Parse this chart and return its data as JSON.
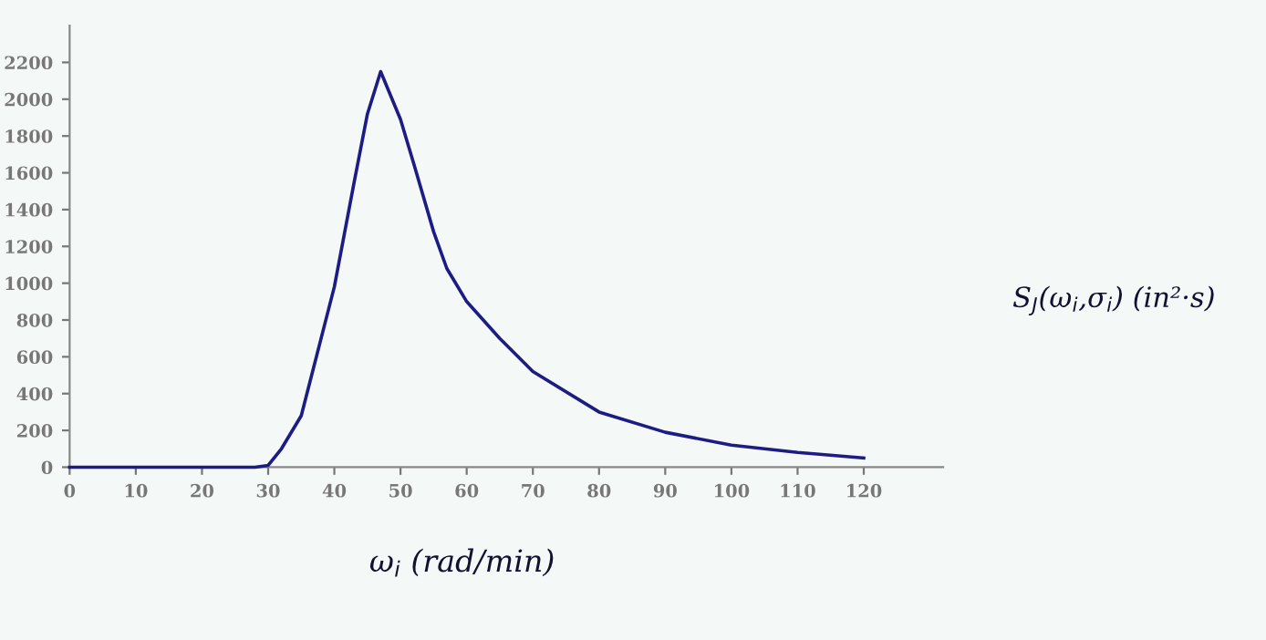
{
  "chart_data": {
    "type": "line",
    "xlabel": "ω$_{i}$ (rad/min)",
    "ylabel": "S$_{J}$(ω$_{i}$,σ$_{i}$) (in²·s)",
    "x": [
      0,
      10,
      20,
      28,
      30,
      32,
      35,
      40,
      43,
      45,
      47,
      50,
      52,
      55,
      57,
      60,
      65,
      70,
      80,
      90,
      100,
      110,
      120
    ],
    "series": [
      {
        "color": "#1c1c84",
        "values": [
          0,
          0,
          0,
          0,
          10,
          100,
          280,
          980,
          1550,
          1920,
          2150,
          1890,
          1650,
          1280,
          1080,
          900,
          700,
          520,
          300,
          190,
          120,
          80,
          50
        ]
      }
    ],
    "xlim": [
      0,
      132
    ],
    "ylim": [
      0,
      2400
    ],
    "xticks": [
      0,
      10,
      20,
      30,
      40,
      50,
      60,
      70,
      80,
      90,
      100,
      110,
      120
    ],
    "yticks": [
      0,
      200,
      400,
      600,
      800,
      1000,
      1200,
      1400,
      1600,
      1800,
      2000,
      2200
    ],
    "grid": false,
    "marker": "none",
    "line_style": "solid"
  }
}
